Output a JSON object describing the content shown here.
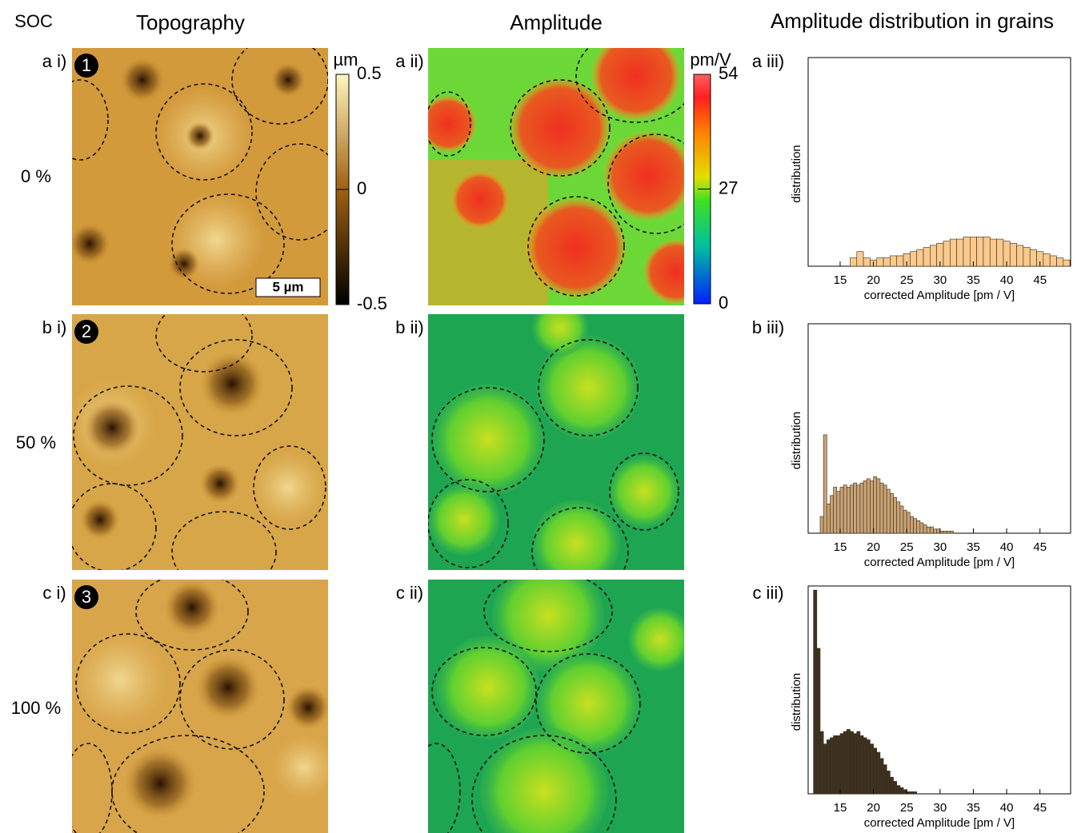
{
  "headers": {
    "soc": "SOC",
    "topography": "Topography",
    "amplitude": "Amplitude",
    "distribution": "Amplitude distribution in grains"
  },
  "rows": [
    {
      "soc": "0 %",
      "topo_label": "a i)",
      "badge": "1",
      "amp_label": "a ii)",
      "hist_label": "a iii)"
    },
    {
      "soc": "50 %",
      "topo_label": "b i)",
      "badge": "2",
      "amp_label": "b ii)",
      "hist_label": "b iii)"
    },
    {
      "soc": "100 %",
      "topo_label": "c i)",
      "badge": "3",
      "amp_label": "c ii)",
      "hist_label": "c iii)"
    }
  ],
  "scale_bar": "5 µm",
  "topography_colorbar": {
    "unit": "µm",
    "lim": [
      -0.5,
      0.5
    ],
    "ticks": [
      0.5,
      0,
      -0.5
    ]
  },
  "amplitude_colorbar": {
    "unit": "pm/V",
    "lim": [
      0,
      54
    ],
    "ticks": [
      54,
      27,
      0
    ]
  },
  "chart_data": [
    {
      "type": "histogram",
      "xlabel": "corrected Amplitude [pm / V]",
      "ylabel": "distribution",
      "color": "#f9c98e",
      "bins": [
        16.5,
        17.5,
        18.5,
        19.5,
        20.5,
        21.5,
        22.5,
        23.5,
        24.5,
        25.5,
        26.5,
        27.5,
        28.5,
        29.5,
        30.5,
        31.5,
        32.5,
        33.5,
        34.5,
        35.5,
        36.5,
        37.5,
        38.5,
        39.5,
        40.5,
        41.5,
        42.5,
        43.5,
        44.5,
        45.5,
        46.5,
        47.5,
        48.5,
        49.5
      ],
      "values": [
        4,
        7,
        4,
        3,
        4,
        4,
        5,
        5,
        6,
        7,
        8,
        9,
        10,
        11,
        12,
        13,
        13,
        14,
        14,
        14,
        14,
        13,
        13,
        12,
        11,
        10,
        9,
        8,
        7,
        6,
        5,
        4,
        3
      ],
      "xlim": [
        10.2,
        49.6
      ],
      "xticks": [
        15,
        20,
        25,
        30,
        35,
        40,
        45
      ],
      "ylim": [
        0,
        100
      ]
    },
    {
      "type": "histogram",
      "xlabel": "corrected Amplitude [pm / V]",
      "ylabel": "distribution",
      "color": "#c9a375",
      "bins": [
        12,
        12.5,
        13,
        13.5,
        14,
        14.5,
        15,
        15.5,
        16,
        16.5,
        17,
        17.5,
        18,
        18.5,
        19,
        19.5,
        20,
        20.5,
        21,
        21.5,
        22,
        22.5,
        23,
        23.5,
        24,
        24.5,
        25,
        25.5,
        26,
        26.5,
        27,
        27.5,
        28,
        28.5,
        29,
        29.5,
        30,
        30.5,
        31,
        31.5,
        32,
        32.5,
        33,
        33.5,
        34
      ],
      "values": [
        8,
        47,
        14,
        18,
        22,
        20,
        22,
        23,
        22,
        23,
        24,
        23,
        24,
        25,
        26,
        25,
        27,
        26,
        24,
        23,
        21,
        19,
        17,
        15,
        13,
        11,
        10,
        8,
        7,
        6,
        5,
        4,
        3,
        3,
        2,
        2,
        1,
        1,
        1,
        1,
        0,
        0,
        0,
        0
      ],
      "xlim": [
        10.2,
        49.6
      ],
      "xticks": [
        15,
        20,
        25,
        30,
        35,
        40,
        45
      ],
      "ylim": [
        0,
        100
      ]
    },
    {
      "type": "histogram",
      "xlabel": "corrected Amplitude [pm / V]",
      "ylabel": "distribution",
      "color": "#3d3222",
      "bins": [
        11,
        11.5,
        12,
        12.5,
        13,
        13.5,
        14,
        14.5,
        15,
        15.5,
        16,
        16.5,
        17,
        17.5,
        18,
        18.5,
        19,
        19.5,
        20,
        20.5,
        21,
        21.5,
        22,
        22.5,
        23,
        23.5,
        24,
        24.5,
        25,
        25.5,
        26,
        26.5,
        27,
        27.5,
        28
      ],
      "values": [
        98,
        70,
        30,
        24,
        26,
        27,
        28,
        28,
        29,
        30,
        31,
        30,
        29,
        30,
        28,
        27,
        26,
        24,
        22,
        20,
        17,
        14,
        11,
        8,
        6,
        4,
        3,
        2,
        1,
        1,
        1,
        0,
        0,
        0
      ],
      "xlim": [
        10.2,
        49.6
      ],
      "xticks": [
        15,
        20,
        25,
        30,
        35,
        40,
        45
      ],
      "ylim": [
        0,
        100
      ]
    }
  ]
}
